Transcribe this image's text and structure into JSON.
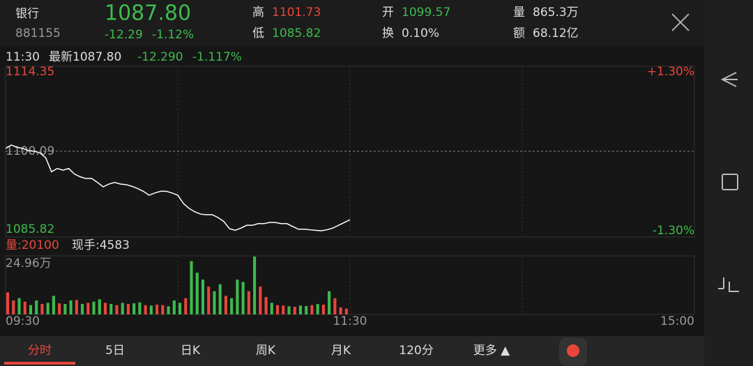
{
  "header": {
    "name": "银行",
    "code": "881155",
    "price": "1087.80",
    "change": "-12.29",
    "change_pct": "-1.12%",
    "stats": [
      {
        "label": "高",
        "value": "1101.73"
      },
      {
        "label": "低",
        "value": "1085.82"
      },
      {
        "label": "开",
        "value": "1099.57"
      },
      {
        "label": "换",
        "value": "0.10%"
      },
      {
        "label": "量",
        "value": "865.3万"
      },
      {
        "label": "额",
        "value": "68.12亿"
      }
    ]
  },
  "info": {
    "time": "11:30",
    "latest": "最新1087.80",
    "change": "-12.290",
    "change_pct": "-1.117%"
  },
  "volume_info": {
    "volume": "量:20100",
    "hand": "现手:4583"
  },
  "tabs": [
    "分时",
    "5日",
    "日K",
    "周K",
    "月K",
    "120分",
    "更多 ▲"
  ],
  "chart_data": [
    {
      "type": "line",
      "color": "#ffffff",
      "x": [
        0,
        2,
        4,
        6,
        8,
        10,
        12,
        14,
        16,
        18,
        20,
        22,
        24,
        26,
        28,
        30,
        32,
        34,
        36,
        38,
        40,
        42,
        44,
        46,
        48,
        50,
        52,
        54,
        56,
        58,
        60,
        62,
        64,
        66,
        68,
        70,
        72,
        74,
        76,
        78,
        80,
        82,
        84,
        86,
        88,
        90,
        92,
        94,
        96,
        98,
        100,
        102,
        104,
        106,
        108,
        110,
        112,
        114,
        116,
        118,
        120
      ],
      "values": [
        1100.6,
        1101.2,
        1100.8,
        1100.6,
        1100.2,
        1100.1,
        1099.8,
        1098.9,
        1096.4,
        1097.0,
        1096.7,
        1097.0,
        1096.0,
        1095.5,
        1095.2,
        1095.2,
        1094.5,
        1093.7,
        1094.2,
        1094.5,
        1094.2,
        1094.1,
        1093.8,
        1093.4,
        1092.9,
        1092.2,
        1092.6,
        1092.9,
        1092.9,
        1092.6,
        1092.2,
        1090.7,
        1089.8,
        1089.2,
        1088.8,
        1088.7,
        1088.7,
        1088.2,
        1087.5,
        1086.2,
        1085.9,
        1086.3,
        1086.8,
        1086.8,
        1087.1,
        1087.1,
        1087.3,
        1087.3,
        1087.1,
        1087.1,
        1086.6,
        1086.1,
        1086.1,
        1086.0,
        1085.9,
        1085.82,
        1086.0,
        1086.3,
        1086.8,
        1087.3,
        1087.8
      ],
      "xlim": [
        0,
        240
      ],
      "ylim": [
        1085.82,
        1114.35
      ],
      "yticks": [
        1114.35,
        1100.09,
        1085.82
      ],
      "y2lim": [
        -1.3,
        1.3
      ],
      "y2ticks": [
        {
          "value": 1.3,
          "label": "+1.30%"
        },
        {
          "value": -1.3,
          "label": "-1.30%"
        }
      ]
    },
    {
      "type": "bar",
      "x": [
        0,
        2,
        4,
        6,
        8,
        10,
        12,
        14,
        16,
        18,
        20,
        22,
        24,
        26,
        28,
        30,
        32,
        34,
        36,
        38,
        40,
        42,
        44,
        46,
        48,
        50,
        52,
        54,
        56,
        58,
        60,
        62,
        64,
        66,
        68,
        70,
        72,
        74,
        76,
        78,
        80,
        82,
        84,
        86,
        88,
        90,
        92,
        94,
        96,
        98,
        100,
        102,
        104,
        106,
        108,
        110,
        112,
        114,
        116,
        118
      ],
      "values": [
        95000,
        60000,
        70000,
        55000,
        40000,
        60000,
        45000,
        50000,
        80000,
        48000,
        45000,
        60000,
        62000,
        45000,
        50000,
        55000,
        65000,
        50000,
        45000,
        40000,
        50000,
        45000,
        48000,
        52000,
        40000,
        38000,
        42000,
        40000,
        35000,
        60000,
        50000,
        70000,
        230000,
        180000,
        150000,
        120000,
        100000,
        130000,
        80000,
        70000,
        150000,
        140000,
        100000,
        249600,
        120000,
        75000,
        50000,
        40000,
        38000,
        35000,
        33000,
        38000,
        36000,
        40000,
        45000,
        42000,
        100000,
        70000,
        30000,
        25000
      ],
      "colors": [
        "#e8463c",
        "#e8463c",
        "#3dbb4d",
        "#e8463c",
        "#3dbb4d",
        "#3dbb4d",
        "#e8463c",
        "#3dbb4d",
        "#3dbb4d",
        "#e8463c",
        "#3dbb4d",
        "#3dbb4d",
        "#e8463c",
        "#3dbb4d",
        "#e8463c",
        "#3dbb4d",
        "#3dbb4d",
        "#e8463c",
        "#3dbb4d",
        "#e8463c",
        "#3dbb4d",
        "#e8463c",
        "#3dbb4d",
        "#3dbb4d",
        "#e8463c",
        "#3dbb4d",
        "#e8463c",
        "#e8463c",
        "#3dbb4d",
        "#3dbb4d",
        "#3dbb4d",
        "#e8463c",
        "#3dbb4d",
        "#3dbb4d",
        "#3dbb4d",
        "#e8463c",
        "#3dbb4d",
        "#3dbb4d",
        "#e8463c",
        "#3dbb4d",
        "#3dbb4d",
        "#3dbb4d",
        "#e8463c",
        "#3dbb4d",
        "#e8463c",
        "#e8463c",
        "#3dbb4d",
        "#e8463c",
        "#e8463c",
        "#3dbb4d",
        "#e8463c",
        "#3dbb4d",
        "#3dbb4d",
        "#e8463c",
        "#3dbb4d",
        "#e8463c",
        "#3dbb4d",
        "#e8463c",
        "#e8463c",
        "#e8463c"
      ],
      "xlim": [
        0,
        240
      ],
      "ylim": [
        0,
        249600
      ],
      "yticks": [
        {
          "value": 249600,
          "label": "24.96万"
        }
      ],
      "xticks": [
        {
          "value": 0,
          "label": "09:30"
        },
        {
          "value": 120,
          "label": "11:30"
        },
        {
          "value": 240,
          "label": "15:00"
        }
      ]
    }
  ]
}
